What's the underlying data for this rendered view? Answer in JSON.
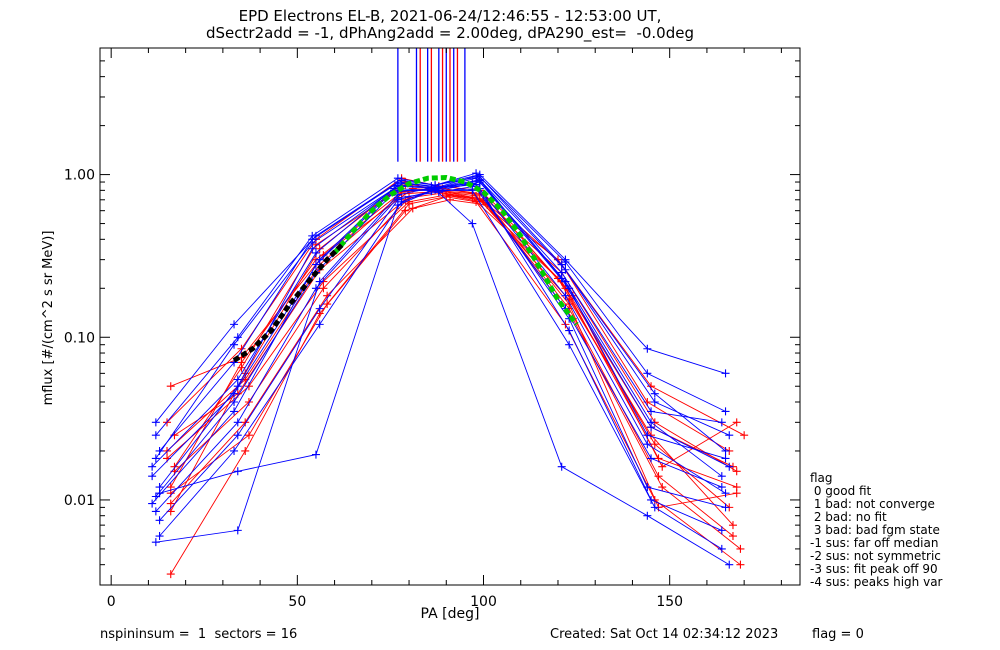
{
  "header": {
    "title_line1": "EPD Electrons EL-B, 2021-06-24/12:46:55 - 12:53:00 UT,",
    "title_line2": "dSectr2add = -1, dPhAng2add = 2.00deg, dPA290_est=  -0.0deg"
  },
  "legend": {
    "heading": "flag",
    "items": [
      " 0 good fit",
      " 1 bad: not converge",
      " 2 bad: no fit",
      " 3 bad: bad fgm state",
      "-1 sus: far off median",
      "-2 sus: not symmetric",
      "-3 sus: fit peak off 90",
      "-4 sus: peaks high var"
    ]
  },
  "footer": {
    "left": "nspininsum =  1  sectors = 16",
    "created": "Created: Sat Oct 14 02:34:12 2023",
    "flag": "flag = 0"
  },
  "colors": {
    "series_a": "#ff0000",
    "series_b": "#0000ff",
    "fit_green": "#00cc00",
    "fit_black": "#000000",
    "axes": "#000000"
  },
  "chart_data": {
    "type": "line",
    "xlabel": "PA [deg]",
    "ylabel": "mflux [#/(cm^2 s sr MeV)]",
    "xlim": [
      -3,
      185
    ],
    "ylim": [
      0.003,
      6.0
    ],
    "yscale": "log",
    "xticks": [
      0,
      50,
      100,
      150
    ],
    "xtick_labels": [
      "0",
      "50",
      "100",
      "150"
    ],
    "yticks": [
      0.01,
      0.1,
      1.0
    ],
    "ytick_labels": [
      "0.01",
      "0.10",
      "1.00"
    ],
    "grid": false,
    "series": [
      {
        "color": "red",
        "curves": [
          {
            "x": [
              16,
              36,
              56,
              79,
              88,
              97,
              120,
              146,
              166
            ],
            "y": [
              0.0085,
              0.06,
              0.35,
              0.9,
              0.78,
              0.72,
              0.23,
              0.022,
              0.009
            ]
          },
          {
            "x": [
              16,
              35,
              55,
              78,
              89,
              100,
              122,
              147,
              168
            ],
            "y": [
              0.012,
              0.07,
              0.3,
              0.78,
              0.82,
              0.76,
              0.2,
              0.018,
              0.012
            ]
          },
          {
            "x": [
              15,
              37,
              57,
              80,
              90,
              99,
              123,
              145,
              167
            ],
            "y": [
              0.018,
              0.05,
              0.22,
              0.68,
              0.75,
              0.7,
              0.17,
              0.025,
              0.007
            ]
          },
          {
            "x": [
              17,
              34,
              56,
              79,
              87,
              98,
              121,
              146,
              168
            ],
            "y": [
              0.025,
              0.045,
              0.26,
              0.7,
              0.8,
              0.74,
              0.25,
              0.03,
              0.015
            ]
          },
          {
            "x": [
              16,
              36,
              58,
              81,
              91,
              101,
              124,
              148,
              169
            ],
            "y": [
              0.0095,
              0.03,
              0.18,
              0.62,
              0.7,
              0.65,
              0.13,
              0.012,
              0.005
            ]
          },
          {
            "x": [
              15,
              35,
              55,
              78,
              88,
              99,
              121,
              144,
              166
            ],
            "y": [
              0.03,
              0.085,
              0.4,
              0.95,
              0.85,
              0.8,
              0.28,
              0.04,
              0.02
            ]
          },
          {
            "x": [
              17,
              37,
              57,
              80,
              89,
              100,
              123,
              147,
              167
            ],
            "y": [
              0.015,
              0.04,
              0.2,
              0.72,
              0.77,
              0.69,
              0.15,
              0.014,
              0.006
            ]
          },
          {
            "x": [
              16,
              36,
              56,
              79,
              90,
              98,
              122,
              146,
              169
            ],
            "y": [
              0.0035,
              0.02,
              0.14,
              0.6,
              0.73,
              0.68,
              0.12,
              0.01,
              0.004
            ]
          },
          {
            "x": [
              16,
              35,
              57,
              81,
              88,
              100,
              124,
              148,
              168
            ],
            "y": [
              0.05,
              0.075,
              0.32,
              0.82,
              0.8,
              0.75,
              0.18,
              0.016,
              0.03
            ]
          },
          {
            "x": [
              15,
              36,
              56,
              78,
              89,
              99,
              120,
              145,
              170
            ],
            "y": [
              0.02,
              0.055,
              0.28,
              0.76,
              0.79,
              0.71,
              0.3,
              0.05,
              0.025
            ]
          },
          {
            "x": [
              16,
              37,
              58,
              80,
              91,
              101,
              123,
              147,
              168
            ],
            "y": [
              0.011,
              0.025,
              0.16,
              0.66,
              0.74,
              0.67,
              0.16,
              0.009,
              0.011
            ]
          },
          {
            "x": [
              17,
              35,
              55,
              79,
              87,
              97,
              121,
              145,
              167
            ],
            "y": [
              0.016,
              0.065,
              0.37,
              0.86,
              0.83,
              0.77,
              0.22,
              0.028,
              0.016
            ]
          }
        ]
      },
      {
        "color": "blue",
        "curves": [
          {
            "x": [
              12,
              33,
              55,
              77,
              86,
              99,
              122,
              144,
              165
            ],
            "y": [
              0.03,
              0.12,
              0.42,
              0.9,
              0.85,
              1.0,
              0.3,
              0.085,
              0.06
            ]
          },
          {
            "x": [
              13,
              34,
              54,
              77,
              87,
              98,
              121,
              145,
              164
            ],
            "y": [
              0.012,
              0.05,
              0.35,
              0.85,
              0.82,
              0.95,
              0.25,
              0.035,
              0.03
            ]
          },
          {
            "x": [
              11,
              33,
              55,
              76,
              88,
              99,
              123,
              144,
              165
            ],
            "y": [
              0.0095,
              0.035,
              0.28,
              0.8,
              0.8,
              0.9,
              0.2,
              0.025,
              0.018
            ]
          },
          {
            "x": [
              12,
              34,
              56,
              77,
              86,
              97,
              122,
              145,
              164
            ],
            "y": [
              0.0055,
              0.0065,
              0.22,
              0.75,
              0.83,
              0.88,
              0.15,
              0.018,
              0.012
            ]
          },
          {
            "x": [
              13,
              33,
              54,
              78,
              87,
              99,
              121,
              146,
              166
            ],
            "y": [
              0.02,
              0.07,
              0.4,
              0.92,
              0.86,
              0.97,
              0.28,
              0.04,
              0.025
            ]
          },
          {
            "x": [
              12,
              34,
              55,
              77,
              88,
              98,
              123,
              144,
              165
            ],
            "y": [
              0.0085,
              0.03,
              0.2,
              0.72,
              0.78,
              0.85,
              0.13,
              0.012,
              0.009
            ]
          },
          {
            "x": [
              11,
              33,
              56,
              76,
              86,
              99,
              122,
              145,
              164
            ],
            "y": [
              0.014,
              0.045,
              0.3,
              0.82,
              0.8,
              0.92,
              0.22,
              0.03,
              0.014
            ]
          },
          {
            "x": [
              13,
              34,
              55,
              77,
              87,
              97,
              121,
              144,
              166
            ],
            "y": [
              0.011,
              0.015,
              0.019,
              0.65,
              0.81,
              0.5,
              0.016,
              0.008,
              0.004
            ]
          },
          {
            "x": [
              12,
              33,
              54,
              78,
              88,
              98,
              122,
              146,
              165
            ],
            "y": [
              0.018,
              0.09,
              0.38,
              0.88,
              0.84,
              0.98,
              0.26,
              0.045,
              0.02
            ]
          },
          {
            "x": [
              13,
              34,
              56,
              77,
              86,
              99,
              123,
              145,
              164
            ],
            "y": [
              0.0075,
              0.025,
              0.15,
              0.7,
              0.79,
              0.82,
              0.11,
              0.01,
              0.0065
            ]
          },
          {
            "x": [
              12,
              33,
              55,
              76,
              87,
              98,
              122,
              144,
              165
            ],
            "y": [
              0.0105,
              0.04,
              0.25,
              0.78,
              0.82,
              0.87,
              0.18,
              0.022,
              0.011
            ]
          },
          {
            "x": [
              11,
              34,
              55,
              77,
              88,
              99,
              121,
              145,
              166
            ],
            "y": [
              0.016,
              0.055,
              0.33,
              0.86,
              0.83,
              0.93,
              0.23,
              0.028,
              0.016
            ]
          },
          {
            "x": [
              13,
              33,
              56,
              78,
              86,
              97,
              123,
              146,
              164
            ],
            "y": [
              0.006,
              0.02,
              0.12,
              0.68,
              0.8,
              0.8,
              0.09,
              0.009,
              0.005
            ]
          },
          {
            "x": [
              12,
              34,
              54,
              77,
              87,
              98,
              122,
              144,
              165
            ],
            "y": [
              0.025,
              0.1,
              0.42,
              0.95,
              0.86,
              1.02,
              0.29,
              0.06,
              0.035
            ]
          }
        ]
      },
      {
        "name": "",
        "color": "green",
        "style": "dashed",
        "curves": [
          {
            "x": [
              60,
              65,
              70,
              75,
              80,
              85,
              90,
              95,
              100,
              105,
              110,
              115,
              120,
              125
            ],
            "y": [
              0.33,
              0.45,
              0.6,
              0.75,
              0.88,
              0.95,
              0.96,
              0.9,
              0.78,
              0.6,
              0.42,
              0.27,
              0.17,
              0.12
            ]
          }
        ]
      },
      {
        "name": "",
        "color": "black",
        "style": "dashed",
        "curves": [
          {
            "x": [
              33,
              38,
              43,
              48,
              53,
              58,
              62
            ],
            "y": [
              0.072,
              0.085,
              0.11,
              0.16,
              0.22,
              0.3,
              0.37
            ]
          }
        ]
      }
    ],
    "vertical_markers": {
      "x_blue": [
        77,
        82,
        85,
        88,
        90,
        92,
        95
      ],
      "x_red": [
        83,
        86,
        89,
        91,
        93
      ],
      "y_from": 1.2,
      "y_to": 6.0
    }
  }
}
